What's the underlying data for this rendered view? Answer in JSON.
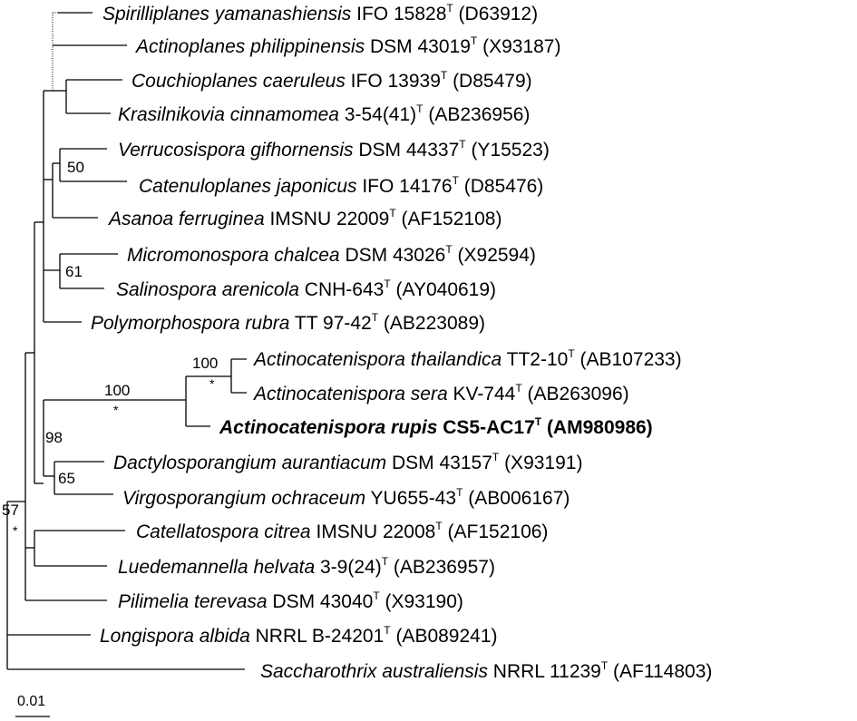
{
  "taxa": [
    {
      "id": "t1",
      "genus_species": "Spirilliplanes yamanashiensis",
      "strain": "IFO 15828",
      "accession": "(D63912)",
      "bold": false
    },
    {
      "id": "t2",
      "genus_species": "Actinoplanes philippinensis",
      "strain": "DSM 43019",
      "accession": "(X93187)",
      "bold": false
    },
    {
      "id": "t3",
      "genus_species": "Couchioplanes caeruleus",
      "strain": "IFO 13939",
      "accession": "(D85479)",
      "bold": false
    },
    {
      "id": "t4",
      "genus_species": "Krasilnikovia cinnamomea",
      "strain": "3-54(41)",
      "accession": "(AB236956)",
      "bold": false
    },
    {
      "id": "t5",
      "genus_species": "Verrucosispora gifhornensis",
      "strain": "DSM 44337",
      "accession": "(Y15523)",
      "bold": false
    },
    {
      "id": "t6",
      "genus_species": "Catenuloplanes japonicus",
      "strain": "IFO 14176",
      "accession": "(D85476)",
      "bold": false
    },
    {
      "id": "t7",
      "genus_species": "Asanoa ferruginea",
      "strain": "IMSNU 22009",
      "accession": "(AF152108)",
      "bold": false
    },
    {
      "id": "t8",
      "genus_species": "Micromonospora chalcea",
      "strain": "DSM 43026",
      "accession": "(X92594)",
      "bold": false
    },
    {
      "id": "t9",
      "genus_species": "Salinospora arenicola",
      "strain": "CNH-643",
      "accession": "(AY040619)",
      "bold": false
    },
    {
      "id": "t10",
      "genus_species": "Polymorphospora rubra",
      "strain": "TT 97-42",
      "accession": "(AB223089)",
      "bold": false
    },
    {
      "id": "t11",
      "genus_species": "Actinocatenispora thailandica",
      "strain": "TT2-10",
      "accession": "(AB107233)",
      "bold": false
    },
    {
      "id": "t12",
      "genus_species": "Actinocatenispora sera",
      "strain": "KV-744",
      "accession": "(AB263096)",
      "bold": false
    },
    {
      "id": "t13",
      "genus_species": "Actinocatenispora rupis",
      "strain": "CS5-AC17",
      "accession": "(AM980986)",
      "bold": true
    },
    {
      "id": "t14",
      "genus_species": "Dactylosporangium aurantiacum",
      "strain": "DSM 43157",
      "accession": "(X93191)",
      "bold": false
    },
    {
      "id": "t15",
      "genus_species": "Virgosporangium ochraceum",
      "strain": "YU655-43",
      "accession": "(AB006167)",
      "bold": false
    },
    {
      "id": "t16",
      "genus_species": "Catellatospora citrea",
      "strain": "IMSNU 22008",
      "accession": "(AF152106)",
      "bold": false
    },
    {
      "id": "t17",
      "genus_species": "Luedemannella helvata",
      "strain": "3-9(24)",
      "accession": "(AB236957)",
      "bold": false
    },
    {
      "id": "t18",
      "genus_species": "Pilimelia terevasa",
      "strain": "DSM 43040",
      "accession": "(X93190)",
      "bold": false
    },
    {
      "id": "t19",
      "genus_species": "Longispora albida",
      "strain": "NRRL B-24201",
      "accession": "(AB089241)",
      "bold": false
    },
    {
      "id": "t20",
      "genus_species": "Saccharothrix australiensis",
      "strain": "NRRL 11239",
      "accession": "(AF114803)",
      "bold": false
    }
  ],
  "type_strain_mark": "T",
  "bootstrap": {
    "b50": "50",
    "b61": "61",
    "b100a": "100",
    "b100b": "100",
    "b98": "98",
    "b65": "65",
    "b57": "57"
  },
  "asterisk": "*",
  "scale_bar_label": "0.01"
}
